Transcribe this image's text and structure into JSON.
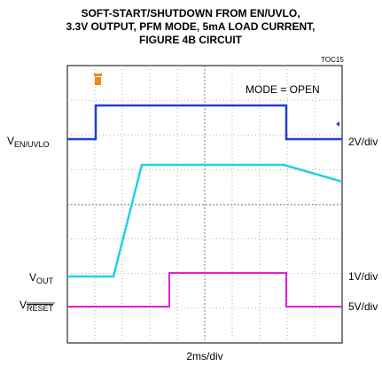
{
  "title": [
    "SOFT-START/SHUTDOWN FROM EN/UVLO,",
    "3.3V OUTPUT, PFM MODE, 5mA LOAD CURRENT,",
    "FIGURE 4B CIRCUIT"
  ],
  "figure_id": "TOC15",
  "mode": "MODE = OPEN",
  "channels": [
    {
      "symbol": "V",
      "subscript": "EN/UVLO",
      "scale": "2V/div"
    },
    {
      "symbol": "V",
      "subscript": "OUT",
      "scale": "1V/div"
    },
    {
      "symbol": "V",
      "subscript": "RESET",
      "scale": "5V/div"
    }
  ],
  "time_scale": "2ms/div"
}
